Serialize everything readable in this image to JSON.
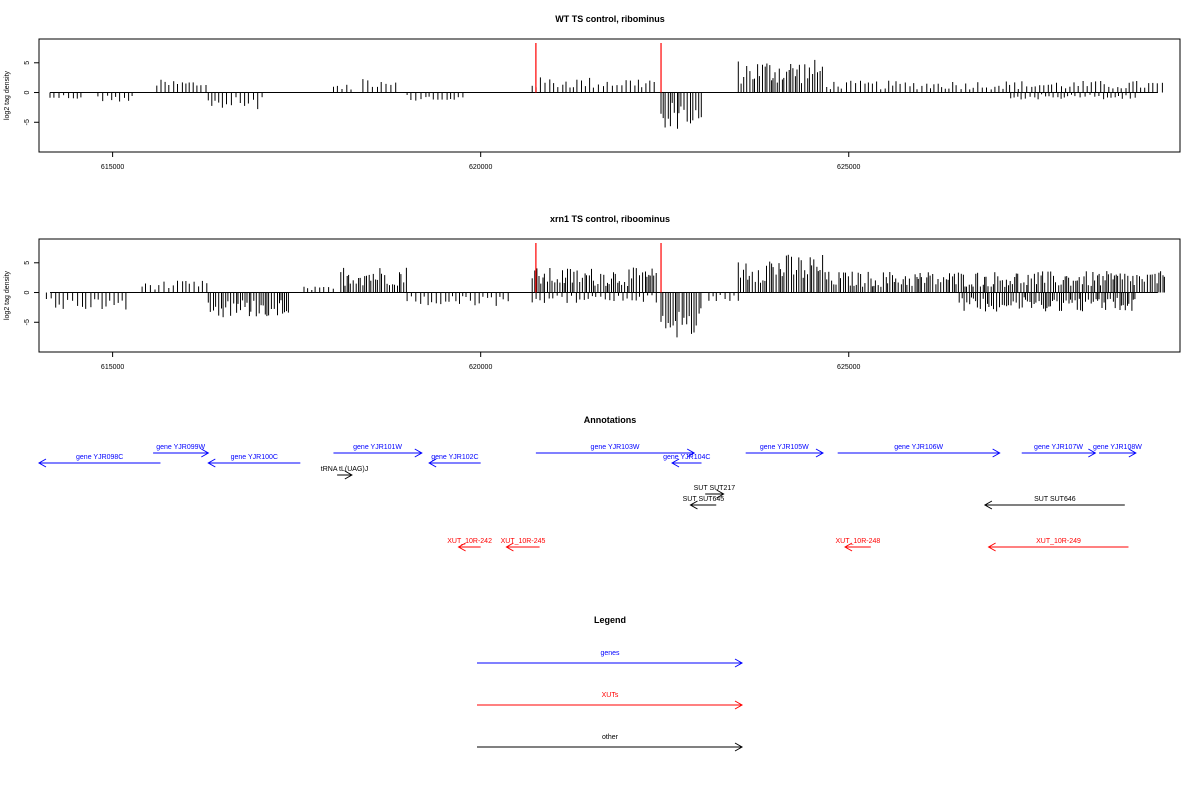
{
  "colors": {
    "gene": "#0000ff",
    "xut": "#ff0000",
    "other": "#000000",
    "marker": "#ff0000"
  },
  "chart_data": [
    {
      "type": "bar",
      "title": "WT TS control, ribominus",
      "ylabel": "log2 tag density",
      "xlim": [
        614000,
        629500
      ],
      "ylim": [
        -10,
        9
      ],
      "xticks": [
        615000,
        620000,
        625000
      ],
      "yticks": [
        -5,
        0,
        5
      ],
      "markers": [
        620750,
        622450
      ],
      "regions": [
        {
          "start": 614150,
          "end": 614600,
          "level": -1.2
        },
        {
          "start": 614800,
          "end": 615300,
          "level": -1.6
        },
        {
          "start": 615600,
          "end": 616300,
          "level": 2.2
        },
        {
          "start": 616300,
          "end": 617050,
          "level": -3.0
        },
        {
          "start": 618000,
          "end": 618250,
          "level": 1.3
        },
        {
          "start": 618400,
          "end": 618900,
          "level": 3.0
        },
        {
          "start": 619000,
          "end": 619800,
          "level": -1.6
        },
        {
          "start": 620700,
          "end": 622400,
          "level": 2.6
        },
        {
          "start": 622450,
          "end": 623000,
          "level": -6.2
        },
        {
          "start": 623500,
          "end": 624650,
          "level": 5.6
        },
        {
          "start": 624700,
          "end": 629300,
          "level": 2.0
        },
        {
          "start": 627200,
          "end": 628900,
          "level": -1.2
        }
      ]
    },
    {
      "type": "bar",
      "title": "xrn1 TS control, riboominus",
      "ylabel": "log2 tag density",
      "xlim": [
        614000,
        629500
      ],
      "ylim": [
        -10,
        9
      ],
      "xticks": [
        615000,
        620000,
        625000
      ],
      "yticks": [
        -5,
        0,
        5
      ],
      "markers": [
        620750,
        622450
      ],
      "regions": [
        {
          "start": 614100,
          "end": 615200,
          "level": -3.0
        },
        {
          "start": 615400,
          "end": 616300,
          "level": 2.0
        },
        {
          "start": 616300,
          "end": 617400,
          "level": -4.2
        },
        {
          "start": 617600,
          "end": 618000,
          "level": 1.0
        },
        {
          "start": 618100,
          "end": 619000,
          "level": 4.5
        },
        {
          "start": 619000,
          "end": 620400,
          "level": -2.4
        },
        {
          "start": 620700,
          "end": 622400,
          "level": 4.2
        },
        {
          "start": 620700,
          "end": 622400,
          "level": -1.8
        },
        {
          "start": 622450,
          "end": 623000,
          "level": -8.0
        },
        {
          "start": 623100,
          "end": 623500,
          "level": -1.5
        },
        {
          "start": 623500,
          "end": 624700,
          "level": 6.5
        },
        {
          "start": 624700,
          "end": 629300,
          "level": 3.6
        },
        {
          "start": 626500,
          "end": 628900,
          "level": -3.2
        }
      ]
    }
  ],
  "annotations": {
    "title": "Annotations",
    "features": [
      {
        "label": "gene YJR098C",
        "type": "gene",
        "start": 614000,
        "end": 615650,
        "strand": "-",
        "row": 1
      },
      {
        "label": "gene YJR099W",
        "type": "gene",
        "start": 615550,
        "end": 616300,
        "strand": "+",
        "row": 0
      },
      {
        "label": "gene YJR100C",
        "type": "gene",
        "start": 616300,
        "end": 617550,
        "strand": "-",
        "row": 1
      },
      {
        "label": "gene YJR101W",
        "type": "gene",
        "start": 618000,
        "end": 619200,
        "strand": "+",
        "row": 0
      },
      {
        "label": "gene YJR102C",
        "type": "gene",
        "start": 619300,
        "end": 620000,
        "strand": "-",
        "row": 1
      },
      {
        "label": "tRNA tL(UAG)J",
        "type": "other",
        "start": 618050,
        "end": 618250,
        "strand": "+",
        "row": 2
      },
      {
        "label": "gene YJR103W",
        "type": "gene",
        "start": 620750,
        "end": 622900,
        "strand": "+",
        "row": 0
      },
      {
        "label": "gene YJR104C",
        "type": "gene",
        "start": 622600,
        "end": 623000,
        "strand": "-",
        "row": 1
      },
      {
        "label": "gene YJR105W",
        "type": "gene",
        "start": 623600,
        "end": 624650,
        "strand": "+",
        "row": 0
      },
      {
        "label": "gene YJR106W",
        "type": "gene",
        "start": 624850,
        "end": 627050,
        "strand": "+",
        "row": 0
      },
      {
        "label": "gene YJR107W",
        "type": "gene",
        "start": 627350,
        "end": 628350,
        "strand": "+",
        "row": 0
      },
      {
        "label": "gene YJR108W",
        "type": "gene",
        "start": 628400,
        "end": 628900,
        "strand": "+",
        "row": 0
      },
      {
        "label": "SUT SUT217",
        "type": "other",
        "start": 623050,
        "end": 623300,
        "strand": "+",
        "row": 3
      },
      {
        "label": "SUT SUT645",
        "type": "other",
        "start": 622850,
        "end": 623200,
        "strand": "-",
        "row": 4
      },
      {
        "label": "SUT SUT646",
        "type": "other",
        "start": 626850,
        "end": 628750,
        "strand": "-",
        "row": 4
      },
      {
        "label": "XUT_10R-242",
        "type": "xut",
        "start": 619700,
        "end": 620000,
        "strand": "-",
        "row": 5
      },
      {
        "label": "XUT_10R-245",
        "type": "xut",
        "start": 620350,
        "end": 620800,
        "strand": "-",
        "row": 5
      },
      {
        "label": "XUT_10R-248",
        "type": "xut",
        "start": 624950,
        "end": 625300,
        "strand": "-",
        "row": 5
      },
      {
        "label": "XUT_10R-249",
        "type": "xut",
        "start": 626900,
        "end": 628800,
        "strand": "-",
        "row": 5
      }
    ]
  },
  "legend": {
    "title": "Legend",
    "items": [
      {
        "label": "genes",
        "type": "gene"
      },
      {
        "label": "XUTs",
        "type": "xut"
      },
      {
        "label": "other",
        "type": "other"
      }
    ]
  }
}
